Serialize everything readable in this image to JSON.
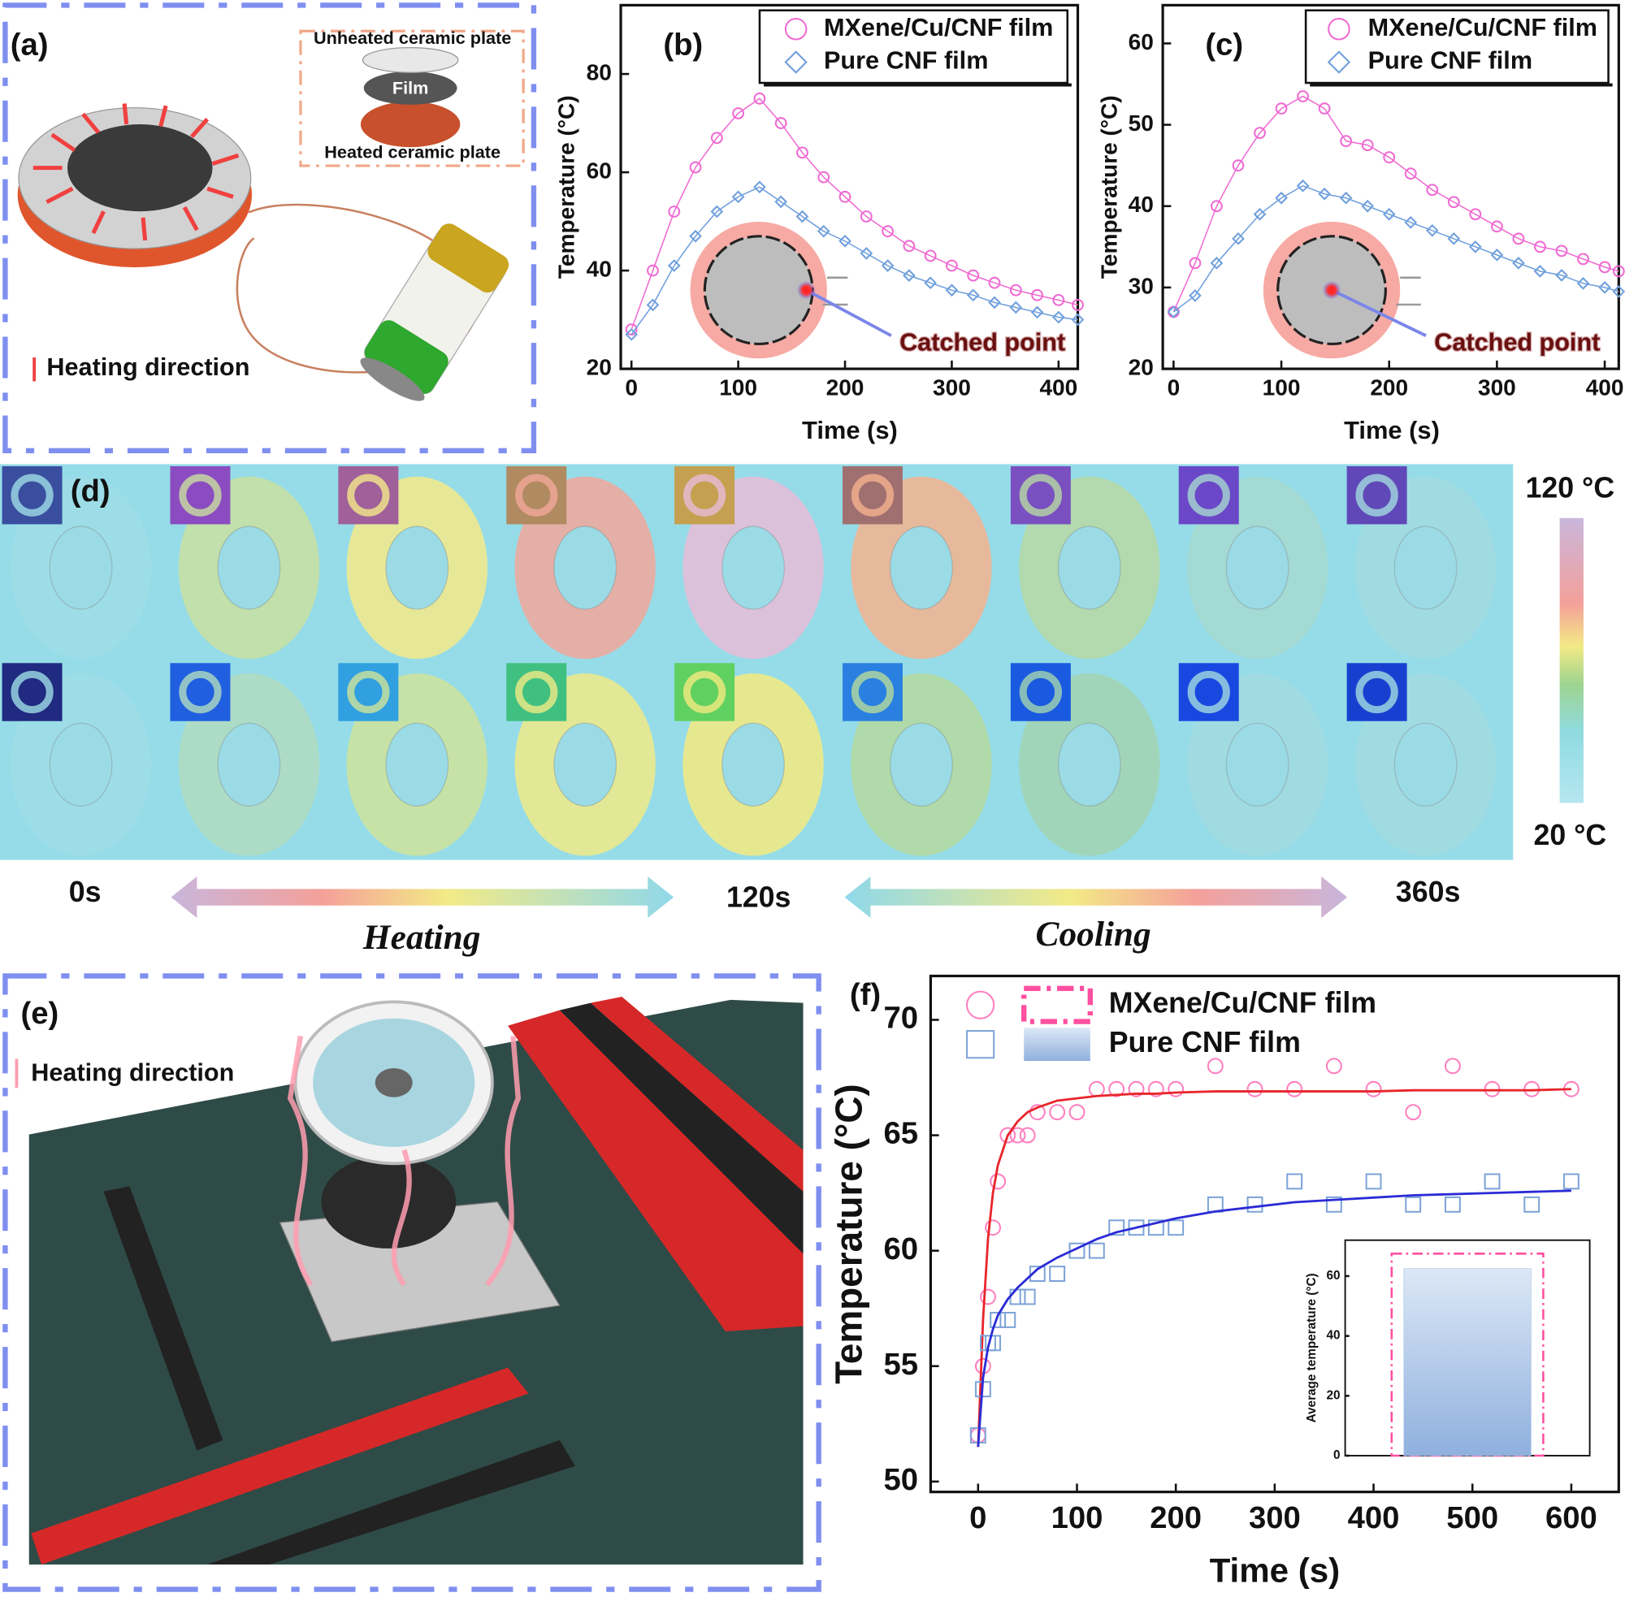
{
  "chart_data": [
    {
      "type": "line",
      "panel_label": "(b)",
      "x_label": "Time (s)",
      "y_label": "Temperature (°C)",
      "annotation": "Catched point",
      "x": [
        0,
        20,
        40,
        60,
        80,
        100,
        120,
        140,
        160,
        180,
        200,
        220,
        240,
        260,
        280,
        300,
        320,
        340,
        360,
        380,
        400,
        418
      ],
      "series": [
        {
          "name": "MXene/Cu/CNF film",
          "color": "#f06ad2",
          "marker": "circle",
          "values": [
            28,
            40,
            52,
            61,
            67,
            72,
            75,
            70,
            64,
            59,
            55,
            51,
            48,
            45,
            43,
            41,
            39,
            37.5,
            36,
            35,
            34,
            33
          ]
        },
        {
          "name": "Pure CNF film",
          "color": "#6f9fdc",
          "marker": "diamond",
          "values": [
            27,
            33,
            41,
            47,
            52,
            55,
            57,
            54,
            51,
            48,
            46,
            43.5,
            41,
            39,
            37.5,
            36,
            35,
            33.5,
            32.5,
            31.5,
            30.5,
            30
          ]
        }
      ],
      "xlim": [
        -10,
        418
      ],
      "ylim": [
        20,
        94
      ],
      "xticks": [
        0,
        100,
        200,
        300,
        400
      ],
      "yticks": [
        20,
        40,
        60,
        80
      ]
    },
    {
      "type": "line",
      "panel_label": "(c)",
      "x_label": "Time (s)",
      "y_label": "Temperature (°C)",
      "annotation": "Catched point",
      "x": [
        0,
        20,
        40,
        60,
        80,
        100,
        120,
        140,
        160,
        180,
        200,
        220,
        240,
        260,
        280,
        300,
        320,
        340,
        360,
        380,
        400,
        413
      ],
      "series": [
        {
          "name": "MXene/Cu/CNF film",
          "color": "#f06ad2",
          "marker": "circle",
          "values": [
            27,
            33,
            40,
            45,
            49,
            52,
            53.5,
            52,
            48,
            47.5,
            46,
            44,
            42,
            40.5,
            39,
            37.5,
            36,
            35,
            34.5,
            33.5,
            32.5,
            32
          ]
        },
        {
          "name": "Pure CNF film",
          "color": "#6f9fdc",
          "marker": "diamond",
          "values": [
            27,
            29,
            33,
            36,
            39,
            41,
            42.5,
            41.5,
            41,
            40,
            39,
            38,
            37,
            36,
            35,
            34,
            33,
            32,
            31.5,
            30.5,
            30,
            29.5
          ]
        }
      ],
      "xlim": [
        -10,
        413
      ],
      "ylim": [
        20,
        64.7
      ],
      "xticks": [
        0,
        100,
        200,
        300,
        400
      ],
      "yticks": [
        20,
        30,
        40,
        50,
        60
      ]
    },
    {
      "type": "scatter",
      "panel_label": "(f)",
      "x_label": "Time (s)",
      "y_label": "Temperature (°C)",
      "x": [
        0,
        5,
        10,
        15,
        20,
        30,
        40,
        50,
        60,
        80,
        100,
        120,
        140,
        160,
        180,
        200,
        240,
        280,
        320,
        360,
        400,
        440,
        480,
        520,
        560,
        600
      ],
      "series": [
        {
          "name": "MXene/Cu/CNF film",
          "color": "#ff7fbf",
          "marker": "circle",
          "fit_color": "#e8252b",
          "values": [
            52,
            55,
            58,
            61,
            63,
            65,
            65,
            65,
            66,
            66,
            66,
            67,
            67,
            67,
            67,
            67,
            68,
            67,
            67,
            68,
            67,
            66,
            68,
            67,
            67,
            67
          ],
          "fit": [
            51.5,
            57,
            60.5,
            62.5,
            63.7,
            65,
            65.6,
            66,
            66.2,
            66.5,
            66.6,
            66.7,
            66.75,
            66.8,
            66.8,
            66.85,
            66.9,
            66.9,
            66.9,
            66.9,
            66.9,
            66.95,
            66.95,
            66.95,
            66.95,
            67
          ]
        },
        {
          "name": "Pure CNF film",
          "color": "#7ea4d8",
          "marker": "square",
          "fit_color": "#2b2bd6",
          "values": [
            52,
            54,
            56,
            56,
            57,
            57,
            58,
            58,
            59,
            59,
            60,
            60,
            61,
            61,
            61,
            61,
            62,
            62,
            63,
            62,
            63,
            62,
            62,
            63,
            62,
            63
          ],
          "fit": [
            51.5,
            54.5,
            55.8,
            56.6,
            57.2,
            57.9,
            58.4,
            58.8,
            59.2,
            59.7,
            60.1,
            60.5,
            60.8,
            61,
            61.2,
            61.4,
            61.7,
            61.9,
            62.1,
            62.2,
            62.3,
            62.4,
            62.45,
            62.5,
            62.55,
            62.6
          ]
        }
      ],
      "xlim": [
        -48,
        648
      ],
      "ylim": [
        49.55,
        71.9
      ],
      "xticks": [
        0,
        100,
        200,
        300,
        400,
        500,
        600
      ],
      "yticks": [
        50,
        55,
        60,
        65,
        70
      ]
    },
    {
      "type": "bar",
      "y_label": "Average temperature (°C)",
      "categories": [
        null
      ],
      "series": [
        {
          "color": "#ff4fa0",
          "style": "dashed-outline",
          "values": [
            67.5
          ]
        },
        {
          "color": "#a9c3e8",
          "style": "gradient",
          "values": [
            62.5
          ]
        }
      ],
      "ylim": [
        0,
        72
      ],
      "yticks": [
        0,
        20,
        40,
        60
      ]
    }
  ],
  "panels": {
    "a": {
      "label": "(a)",
      "top_plate": "Unheated ceramic plate",
      "film": "Film",
      "bottom_plate": "Heated ceramic plate",
      "legend": "Heating direction"
    },
    "d": {
      "label": "(d)",
      "scale_max": "120 °C",
      "scale_min": "20 °C",
      "times": [
        "0s",
        "120s",
        "360s"
      ],
      "heating": "Heating",
      "cooling": "Cooling"
    },
    "e": {
      "label": "(e)",
      "legend": "Heating direction"
    }
  }
}
